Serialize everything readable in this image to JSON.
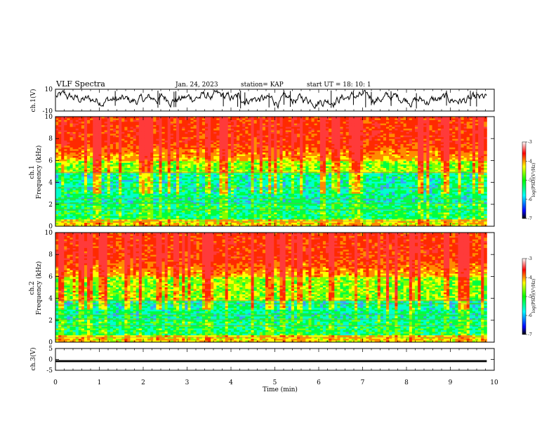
{
  "header": {
    "title": "VLF Spectra",
    "date": "Jan. 24, 2023",
    "station": "station= KAP",
    "start": "start  UT  =   18: 10: 1"
  },
  "chart_data": [
    {
      "name": "ch1-waveform",
      "type": "line",
      "ylabel": "ch.1(V)",
      "ylim": [
        -10,
        10
      ],
      "yticks": [
        "10",
        "-10"
      ],
      "xlim": [
        0,
        10
      ],
      "x_data_end": 9.83,
      "baseline": 1.2,
      "approx_amplitude": 4
    },
    {
      "name": "ch1-spectrogram",
      "type": "heatmap",
      "ylabel": "ch.1",
      "ylabel2": "Frequency (kHz)",
      "ylim": [
        0,
        10
      ],
      "yticks": [
        "0",
        "2",
        "4",
        "6",
        "8",
        "10"
      ],
      "xlim": [
        0,
        10
      ],
      "x_data_end": 9.83,
      "colorbar": {
        "ticks": [
          "-3",
          "-4",
          "-5",
          "-6",
          "-7"
        ],
        "label": "log(PSD)(V²/Hz)",
        "range": [
          -7,
          -3
        ]
      }
    },
    {
      "name": "ch2-spectrogram",
      "type": "heatmap",
      "ylabel": "ch.2",
      "ylabel2": "Frequency (kHz)",
      "ylim": [
        0,
        10
      ],
      "yticks": [
        "0",
        "2",
        "4",
        "6",
        "8",
        "10"
      ],
      "xlim": [
        0,
        10
      ],
      "x_data_end": 9.83,
      "colorbar": {
        "ticks": [
          "-3",
          "-4",
          "-5",
          "-6",
          "-7"
        ],
        "label": "log(PSD)(V²/Hz)",
        "range": [
          -7,
          -3
        ]
      }
    },
    {
      "name": "ch3-waveform",
      "type": "line",
      "ylabel": "ch.3(V)",
      "ylim": [
        -5,
        5
      ],
      "yticks": [
        "5",
        "0",
        "-5"
      ],
      "xlim": [
        0,
        10
      ],
      "x_data_end": 9.83,
      "baseline": -0.8
    }
  ],
  "xaxis": {
    "label": "Time (min)",
    "ticks": [
      "0",
      "1",
      "2",
      "3",
      "4",
      "5",
      "6",
      "7",
      "8",
      "9",
      "10"
    ]
  },
  "colors": {
    "line": "#000000",
    "colormap": [
      "#000000",
      "#0000ff",
      "#00ffff",
      "#00ff00",
      "#ffff00",
      "#ff0000",
      "#ffffff"
    ]
  }
}
